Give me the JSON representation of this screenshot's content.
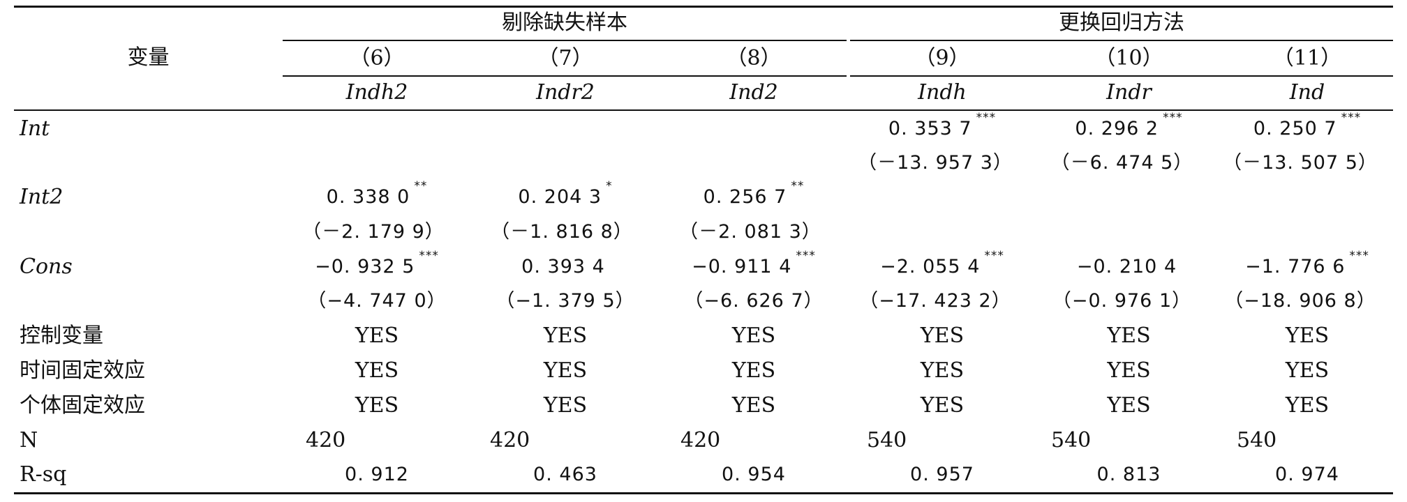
{
  "headers": {
    "variable": "变量",
    "group1": "剔除缺失样本",
    "group2": "更换回归方法",
    "columns": [
      "（6）",
      "（7）",
      "（8）",
      "（9）",
      "（10）",
      "（11）"
    ],
    "dependents": [
      "Indh2",
      "Indr2",
      "Ind2",
      "Indh",
      "Indr",
      "Ind"
    ]
  },
  "rows": {
    "int": {
      "label": "Int",
      "coef": [
        "",
        "",
        "",
        "0. 353 7",
        "0. 296 2",
        "0. 250 7"
      ],
      "stars": [
        "",
        "",
        "",
        "***",
        "***",
        "***"
      ],
      "t": [
        "",
        "",
        "",
        "（－13. 957 3）",
        "（－6. 474 5）",
        "（－13. 507 5）"
      ]
    },
    "int2": {
      "label": "Int2",
      "coef": [
        "0. 338 0",
        "0. 204 3",
        "0. 256 7",
        "",
        "",
        ""
      ],
      "stars": [
        "**",
        "*",
        "**",
        "",
        "",
        ""
      ],
      "t": [
        "（－2. 179 9）",
        "（－1. 816 8）",
        "（－2. 081 3）",
        "",
        "",
        ""
      ]
    },
    "cons": {
      "label": "Cons",
      "coef": [
        "−0. 932 5",
        "0. 393 4",
        "−0. 911 4",
        "−2. 055 4",
        "−0. 210 4",
        "−1. 776 6"
      ],
      "stars": [
        "***",
        "",
        "***",
        "***",
        "",
        "***"
      ],
      "t": [
        "（−4. 747 0）",
        "（−1. 379 5）",
        "（−6. 626 7）",
        "（−17. 423 2）",
        "（−0. 976 1）",
        "（−18. 906 8）"
      ]
    },
    "controls": {
      "label": "控制变量",
      "values": [
        "YES",
        "YES",
        "YES",
        "YES",
        "YES",
        "YES"
      ]
    },
    "time_fe": {
      "label": "时间固定效应",
      "values": [
        "YES",
        "YES",
        "YES",
        "YES",
        "YES",
        "YES"
      ]
    },
    "indiv_fe": {
      "label": "个体固定效应",
      "values": [
        "YES",
        "YES",
        "YES",
        "YES",
        "YES",
        "YES"
      ]
    },
    "n": {
      "label": "N",
      "values": [
        "420",
        "420",
        "420",
        "540",
        "540",
        "540"
      ]
    },
    "rsq": {
      "label": "R-sq",
      "values": [
        "0. 912",
        "0. 463",
        "0. 954",
        "0. 957",
        "0. 813",
        "0. 974"
      ]
    }
  }
}
